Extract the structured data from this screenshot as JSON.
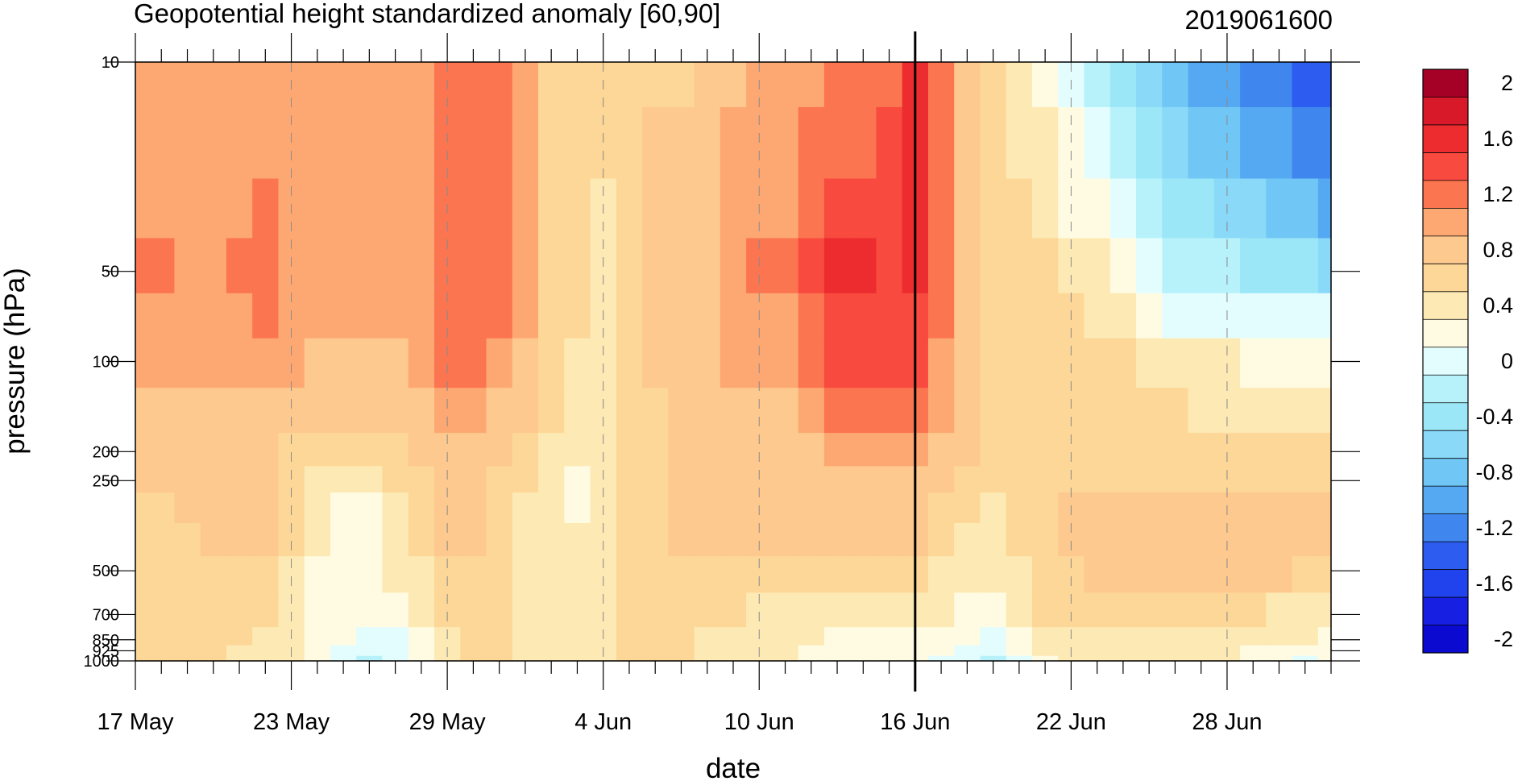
{
  "chart_data": {
    "type": "heatmap",
    "subtype": "filled-contour time-pressure cross section",
    "title": "Geopotential height standardized anomaly [60,90]",
    "right_title": "2019061600",
    "xlabel": "date",
    "ylabel": "pressure (hPa)",
    "x_ticks": [
      "17 May",
      "23 May",
      "29 May",
      "4 Jun",
      "10 Jun",
      "16 Jun",
      "22 Jun",
      "28 Jun"
    ],
    "x_range": [
      "17 May",
      "2 Jul"
    ],
    "y_ticks": [
      "10",
      "50",
      "100",
      "200",
      "250",
      "500",
      "700",
      "850",
      "925",
      "1000"
    ],
    "y_scale": "log",
    "y_range": [
      1000,
      10
    ],
    "forecast_start_line": "16 Jun",
    "vertical_grid": "dashed at labeled dates",
    "colorbar": {
      "position": "right",
      "levels": [
        "-2",
        "-1.8",
        "-1.6",
        "-1.4",
        "-1.2",
        "-1",
        "-0.8",
        "-0.6",
        "-0.4",
        "-0.2",
        "0",
        "0.2",
        "0.4",
        "0.6",
        "0.8",
        "1",
        "1.2",
        "1.4",
        "1.6",
        "1.8",
        "2"
      ],
      "labels": [
        "2",
        "1.6",
        "1.2",
        "0.8",
        "0.4",
        "0",
        "-0.4",
        "-0.8",
        "-1.2",
        "-1.6",
        "-2"
      ],
      "colors": [
        "#a50026",
        "#d7192a",
        "#ec2c2f",
        "#f84a3e",
        "#fb7550",
        "#fda872",
        "#fdc98e",
        "#fdd797",
        "#fde9b4",
        "#fffbe2",
        "#e3fdfe",
        "#b7f2fb",
        "#9be7f8",
        "#8ad9f8",
        "#70c7f5",
        "#55a9f3",
        "#3f86ee",
        "#2c5df0",
        "#2143ee",
        "#1720e2",
        "#0a0ad0"
      ]
    },
    "color_index_grid_note": "rows top(10 hPa)->bottom(1000 hPa); cols 17 May -> 2 Jul; values are colorbar indices (0=>2.0 ... 10=>0 ... 20=>-2.0)",
    "grid": {
      "columns": [
        "17 May",
        "18 May",
        "19 May",
        "20 May",
        "21 May",
        "22 May",
        "23 May",
        "24 May",
        "25 May",
        "26 May",
        "27 May",
        "28 May",
        "29 May",
        "30 May",
        "31 May",
        "1 Jun",
        "2 Jun",
        "3 Jun",
        "4 Jun",
        "5 Jun",
        "6 Jun",
        "7 Jun",
        "8 Jun",
        "9 Jun",
        "10 Jun",
        "11 Jun",
        "12 Jun",
        "13 Jun",
        "14 Jun",
        "15 Jun",
        "16 Jun",
        "17 Jun",
        "18 Jun",
        "19 Jun",
        "20 Jun",
        "21 Jun",
        "22 Jun",
        "23 Jun",
        "24 Jun",
        "25 Jun",
        "26 Jun",
        "27 Jun",
        "28 Jun",
        "29 Jun",
        "30 Jun",
        "1 Jul",
        "2 Jul"
      ],
      "rows_hPa": [
        "10",
        "20",
        "30",
        "50",
        "70",
        "100",
        "150",
        "200",
        "250",
        "300",
        "400",
        "500",
        "700",
        "850",
        "925",
        "1000"
      ],
      "idx": [
        [
          5,
          5,
          5,
          5,
          5,
          5,
          5,
          5,
          5,
          5,
          5,
          5,
          4,
          4,
          4,
          5,
          7,
          7,
          7,
          7,
          7,
          7,
          6,
          6,
          5,
          5,
          5,
          4,
          4,
          4,
          2,
          4,
          6,
          7,
          8,
          9,
          10,
          11,
          12,
          13,
          14,
          15,
          15,
          16,
          16,
          17,
          17
        ],
        [
          5,
          5,
          5,
          5,
          5,
          5,
          5,
          5,
          5,
          5,
          5,
          5,
          4,
          4,
          4,
          5,
          7,
          7,
          7,
          7,
          6,
          6,
          6,
          5,
          5,
          5,
          4,
          4,
          4,
          3,
          2,
          4,
          6,
          7,
          8,
          8,
          9,
          10,
          11,
          12,
          13,
          14,
          14,
          15,
          15,
          16,
          16
        ],
        [
          5,
          5,
          5,
          5,
          5,
          4,
          5,
          5,
          5,
          5,
          5,
          5,
          4,
          4,
          4,
          5,
          7,
          7,
          8,
          7,
          6,
          6,
          6,
          5,
          5,
          5,
          4,
          3,
          3,
          3,
          2,
          4,
          6,
          7,
          7,
          8,
          9,
          9,
          10,
          11,
          12,
          12,
          13,
          13,
          14,
          14,
          15
        ],
        [
          4,
          4,
          5,
          5,
          4,
          4,
          5,
          5,
          5,
          5,
          5,
          5,
          4,
          4,
          4,
          5,
          7,
          7,
          8,
          7,
          6,
          6,
          6,
          5,
          4,
          4,
          3,
          2,
          2,
          3,
          2,
          4,
          6,
          7,
          7,
          7,
          8,
          8,
          9,
          10,
          11,
          11,
          11,
          12,
          12,
          12,
          13
        ],
        [
          5,
          5,
          5,
          5,
          5,
          4,
          5,
          5,
          5,
          5,
          5,
          5,
          4,
          4,
          4,
          5,
          7,
          7,
          8,
          7,
          6,
          6,
          6,
          5,
          5,
          5,
          4,
          3,
          3,
          3,
          3,
          4,
          6,
          7,
          7,
          7,
          7,
          8,
          8,
          9,
          10,
          10,
          10,
          10,
          10,
          10,
          10
        ],
        [
          5,
          5,
          5,
          5,
          5,
          5,
          5,
          6,
          6,
          6,
          6,
          5,
          4,
          4,
          5,
          6,
          7,
          8,
          8,
          7,
          6,
          6,
          6,
          5,
          5,
          5,
          4,
          3,
          3,
          3,
          3,
          5,
          6,
          7,
          7,
          7,
          7,
          7,
          7,
          8,
          8,
          8,
          8,
          9,
          9,
          9,
          9
        ],
        [
          6,
          6,
          6,
          6,
          6,
          6,
          6,
          6,
          6,
          6,
          6,
          6,
          5,
          5,
          6,
          6,
          7,
          8,
          8,
          7,
          7,
          6,
          6,
          6,
          6,
          6,
          5,
          4,
          4,
          4,
          4,
          5,
          6,
          7,
          7,
          7,
          7,
          7,
          7,
          7,
          7,
          8,
          8,
          8,
          8,
          8,
          8
        ],
        [
          6,
          6,
          6,
          6,
          6,
          6,
          7,
          7,
          7,
          7,
          7,
          6,
          6,
          6,
          6,
          7,
          8,
          8,
          8,
          7,
          7,
          6,
          6,
          6,
          6,
          6,
          6,
          5,
          5,
          5,
          5,
          6,
          6,
          7,
          7,
          7,
          7,
          7,
          7,
          7,
          7,
          7,
          7,
          7,
          7,
          7,
          7
        ],
        [
          6,
          6,
          6,
          6,
          6,
          6,
          7,
          8,
          8,
          8,
          7,
          7,
          6,
          6,
          7,
          7,
          8,
          9,
          8,
          7,
          7,
          6,
          6,
          6,
          6,
          6,
          6,
          6,
          6,
          6,
          6,
          6,
          7,
          7,
          7,
          7,
          7,
          7,
          7,
          7,
          7,
          7,
          7,
          7,
          7,
          7,
          7
        ],
        [
          7,
          7,
          6,
          6,
          6,
          6,
          7,
          8,
          9,
          9,
          8,
          7,
          6,
          6,
          7,
          8,
          8,
          9,
          8,
          7,
          7,
          6,
          6,
          6,
          6,
          6,
          6,
          6,
          6,
          6,
          6,
          7,
          7,
          8,
          7,
          7,
          6,
          6,
          6,
          6,
          6,
          6,
          6,
          6,
          6,
          6,
          6
        ],
        [
          7,
          7,
          7,
          6,
          6,
          6,
          7,
          8,
          9,
          9,
          8,
          7,
          6,
          6,
          7,
          8,
          8,
          8,
          8,
          7,
          7,
          6,
          6,
          6,
          6,
          6,
          6,
          6,
          6,
          6,
          6,
          7,
          8,
          8,
          7,
          7,
          6,
          6,
          6,
          6,
          6,
          6,
          6,
          6,
          6,
          6,
          6
        ],
        [
          7,
          7,
          7,
          7,
          7,
          7,
          8,
          9,
          9,
          9,
          8,
          8,
          7,
          7,
          7,
          8,
          8,
          8,
          8,
          7,
          7,
          7,
          7,
          7,
          7,
          7,
          7,
          7,
          7,
          7,
          7,
          8,
          8,
          8,
          8,
          7,
          7,
          6,
          6,
          6,
          6,
          6,
          6,
          6,
          6,
          7,
          7
        ],
        [
          7,
          7,
          7,
          7,
          7,
          7,
          8,
          9,
          9,
          9,
          9,
          8,
          7,
          7,
          7,
          8,
          8,
          8,
          8,
          7,
          7,
          7,
          7,
          7,
          8,
          8,
          8,
          8,
          8,
          8,
          8,
          8,
          9,
          9,
          8,
          7,
          7,
          7,
          7,
          7,
          7,
          7,
          7,
          7,
          8,
          8,
          8
        ],
        [
          7,
          7,
          7,
          7,
          7,
          8,
          8,
          9,
          9,
          10,
          10,
          9,
          8,
          7,
          7,
          8,
          8,
          8,
          8,
          7,
          7,
          7,
          8,
          8,
          8,
          8,
          8,
          9,
          9,
          9,
          9,
          9,
          9,
          10,
          9,
          8,
          8,
          8,
          8,
          8,
          8,
          8,
          8,
          8,
          8,
          8,
          9
        ],
        [
          7,
          7,
          7,
          7,
          8,
          8,
          8,
          9,
          10,
          10,
          10,
          9,
          8,
          7,
          7,
          8,
          8,
          8,
          8,
          7,
          7,
          7,
          8,
          8,
          8,
          8,
          9,
          9,
          9,
          9,
          9,
          9,
          10,
          10,
          9,
          8,
          8,
          8,
          8,
          8,
          8,
          8,
          8,
          9,
          9,
          9,
          9
        ],
        [
          7,
          7,
          7,
          7,
          8,
          8,
          8,
          9,
          10,
          11,
          10,
          9,
          8,
          7,
          7,
          8,
          8,
          8,
          8,
          7,
          7,
          7,
          8,
          8,
          8,
          8,
          9,
          9,
          9,
          9,
          9,
          10,
          10,
          11,
          10,
          9,
          8,
          8,
          8,
          8,
          8,
          8,
          8,
          9,
          9,
          10,
          9
        ]
      ]
    }
  }
}
